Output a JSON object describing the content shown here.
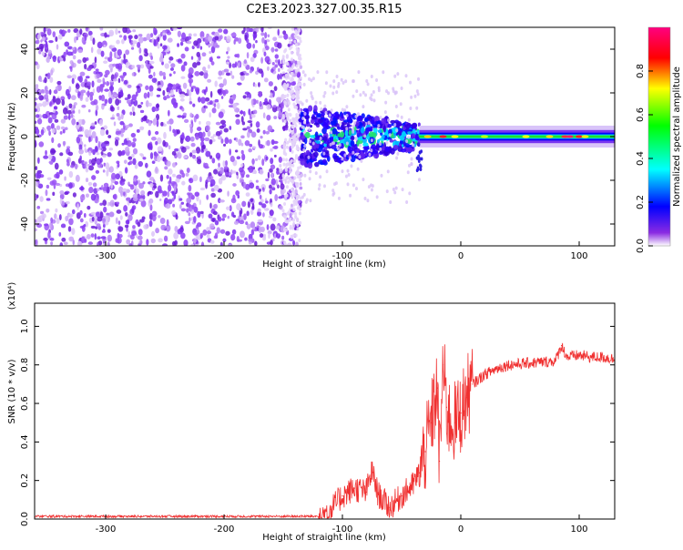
{
  "title": "C2E3.2023.327.00.35.R15",
  "chart_data": [
    {
      "type": "heatmap",
      "xlabel": "Height of straight line (km)",
      "ylabel": "Frequency (Hz)",
      "xlim": [
        -360,
        130
      ],
      "ylim": [
        -50,
        50
      ],
      "xticks": [
        -300,
        -200,
        -100,
        0,
        100
      ],
      "xtick_labels": [
        "-300",
        "-200",
        "-100",
        "0",
        "100"
      ],
      "yticks": [
        -40,
        -20,
        0,
        20,
        40
      ],
      "ytick_labels": [
        "-40",
        "-20",
        "0",
        "20",
        "40"
      ],
      "grid": false,
      "colorbar": {
        "label": "Normalized spectral amplitude",
        "range": [
          0,
          1
        ],
        "ticks": [
          0,
          0.2,
          0.4,
          0.6,
          0.8
        ],
        "tick_labels": [
          "0.0",
          "0.2",
          "0.4",
          "0.6",
          "0.8"
        ],
        "colormap": [
          "#ffffff",
          "#6a00ff",
          "#0000ff",
          "#00ffff",
          "#00ff00",
          "#ffff00",
          "#ff0000",
          "#ff0080"
        ]
      },
      "regions": [
        {
          "x_range": [
            -360,
            -135
          ],
          "freq_range": [
            -50,
            50
          ],
          "amplitude": "low, broadband noise",
          "color": "#7a22f0"
        },
        {
          "x_range": [
            -135,
            -35
          ],
          "freq_range": [
            -15,
            12
          ],
          "amplitude": "medium, scattered",
          "color": "#1e2cff"
        },
        {
          "x_range": [
            -35,
            130
          ],
          "freq_range": [
            -2,
            2
          ],
          "amplitude": "high, narrow line near 0 Hz",
          "color": "#20e030"
        }
      ]
    },
    {
      "type": "line",
      "xlabel": "Height of straight line (km)",
      "ylabel": "SNR (10 * v/v)",
      "y_scale_label": "(x10⁴)",
      "xlim": [
        -360,
        130
      ],
      "ylim": [
        0,
        1.12
      ],
      "xticks": [
        -300,
        -200,
        -100,
        0,
        100
      ],
      "xtick_labels": [
        "-300",
        "-200",
        "-100",
        "0",
        "100"
      ],
      "yticks": [
        0,
        0.2,
        0.4,
        0.6,
        0.8,
        1.0
      ],
      "ytick_labels": [
        "0.0",
        "0.2",
        "0.4",
        "0.6",
        "0.8",
        "1.0"
      ],
      "grid": false,
      "series": [
        {
          "color": "#f03030",
          "x": [
            -360,
            -300,
            -200,
            -140,
            -120,
            -110,
            -100,
            -90,
            -80,
            -75,
            -70,
            -60,
            -50,
            -40,
            -35,
            -30,
            -25,
            -20,
            -18,
            -15,
            -12,
            -10,
            -5,
            0,
            5,
            10,
            20,
            30,
            40,
            60,
            80,
            85,
            90,
            100,
            110,
            120,
            130
          ],
          "y": [
            0.01,
            0.01,
            0.01,
            0.01,
            0.01,
            0.05,
            0.12,
            0.16,
            0.14,
            0.25,
            0.13,
            0.06,
            0.12,
            0.18,
            0.24,
            0.35,
            0.5,
            0.68,
            0.3,
            0.8,
            0.58,
            0.52,
            0.5,
            0.55,
            0.63,
            0.7,
            0.75,
            0.78,
            0.8,
            0.81,
            0.82,
            0.9,
            0.84,
            0.85,
            0.84,
            0.84,
            0.83
          ]
        }
      ]
    }
  ]
}
